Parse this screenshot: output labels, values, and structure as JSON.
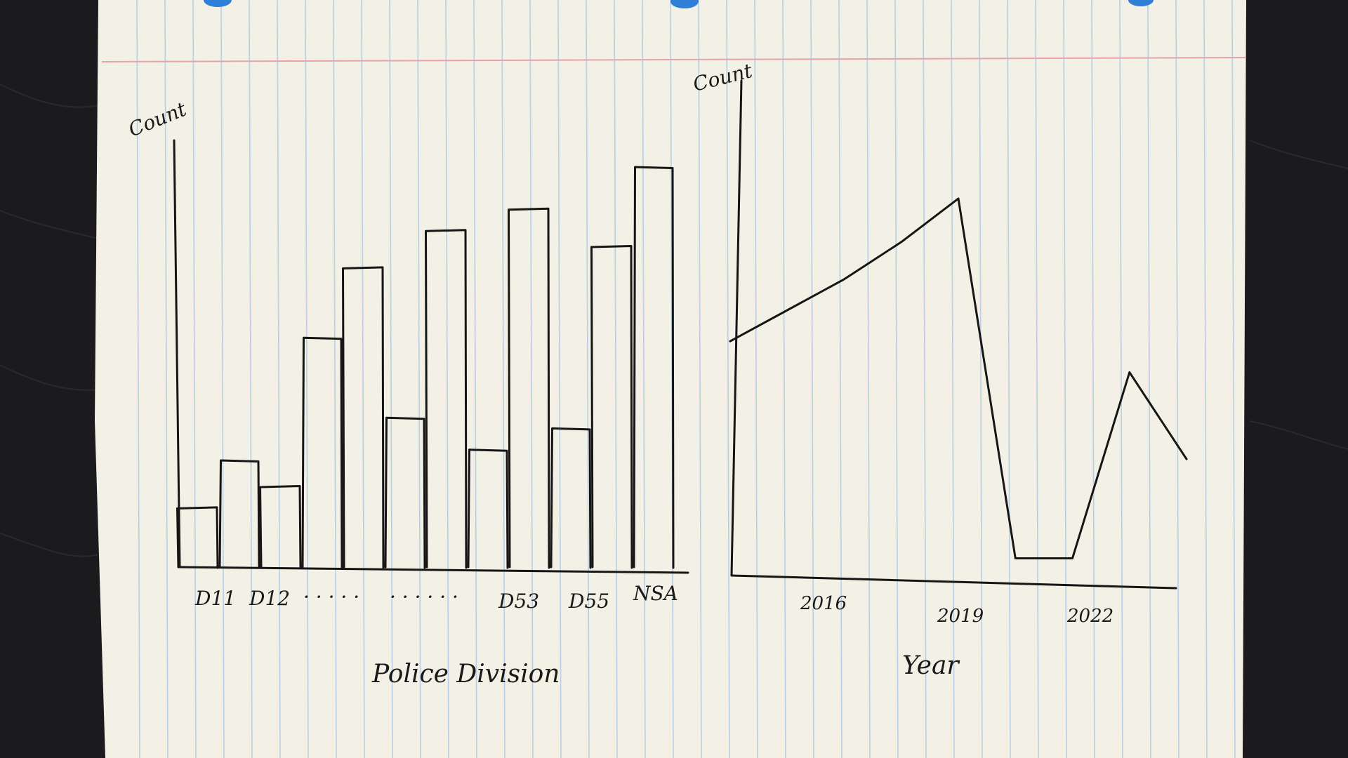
{
  "chart_data": [
    {
      "type": "bar",
      "ylabel": "Count",
      "xlabel": "Police Division",
      "tick_labels": [
        "D11",
        "D12",
        "· · · · ·",
        "· · · · · ·",
        "D53",
        "D55",
        "NSA"
      ],
      "values": [
        11,
        20,
        15,
        43,
        56,
        28,
        63,
        22,
        67,
        26,
        60,
        75
      ],
      "ylim": [
        0,
        80
      ],
      "grid": false
    },
    {
      "type": "line",
      "ylabel": "Count",
      "xlabel": "Year",
      "tick_labels": [
        "2016",
        "2019",
        "2022"
      ],
      "x": [
        2015,
        2016,
        2017,
        2018,
        2019,
        2020,
        2021,
        2022,
        2023
      ],
      "values": [
        38,
        43,
        48,
        54,
        61,
        3,
        3,
        33,
        19
      ],
      "ylim": [
        0,
        80
      ],
      "xlim": [
        2015,
        2023
      ],
      "grid": false
    }
  ],
  "colors": {
    "paper": "#f3f0e6",
    "rule_line": "#b9cfe4",
    "margin_line": "#e6a3a8",
    "ink": "#161616",
    "table": "#1b1b1d",
    "binder_hole": "#2f7fd6"
  }
}
